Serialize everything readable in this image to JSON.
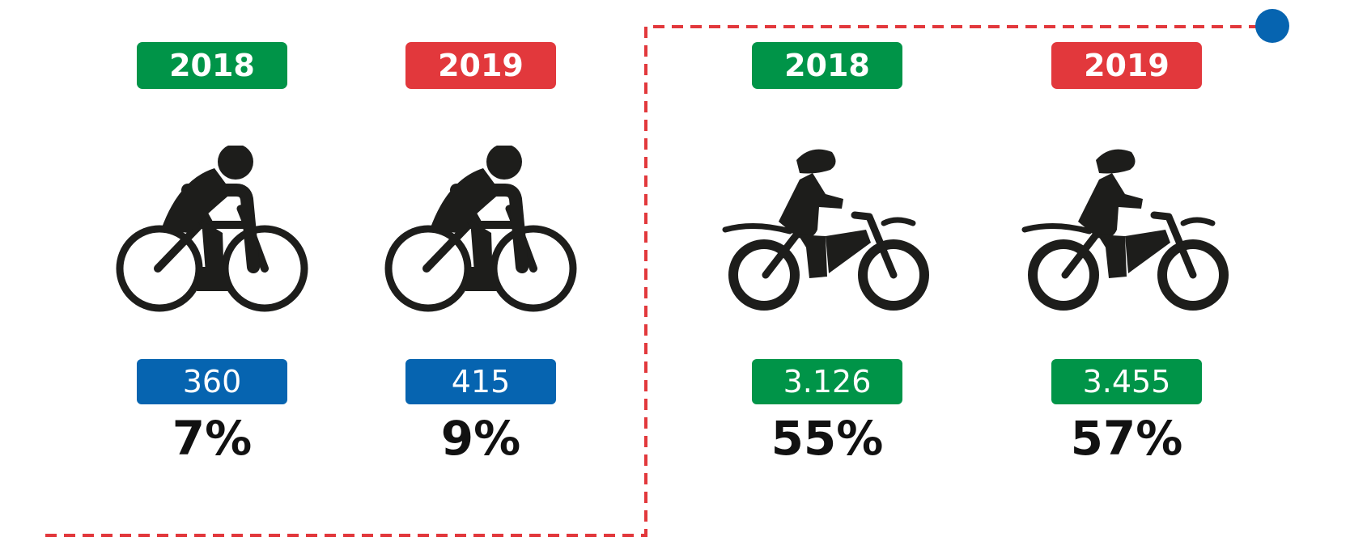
{
  "colors": {
    "year_2018": "#009448",
    "year_2019": "#e2383c",
    "bicycle_count_badge": "#0664b0",
    "motorcycle_count_badge": "#009448",
    "connector_line": "#e2383c",
    "connector_dot": "#0664b0",
    "icon": "#1d1d1b"
  },
  "groups": [
    {
      "icon": "bicycle-rider-icon",
      "items": [
        {
          "year": "2018",
          "count": "360",
          "share": "7%"
        },
        {
          "year": "2019",
          "count": "415",
          "share": "9%"
        }
      ]
    },
    {
      "icon": "motorcycle-rider-icon",
      "items": [
        {
          "year": "2018",
          "count": "3.126",
          "share": "55%"
        },
        {
          "year": "2019",
          "count": "3.455",
          "share": "57%"
        }
      ]
    }
  ]
}
